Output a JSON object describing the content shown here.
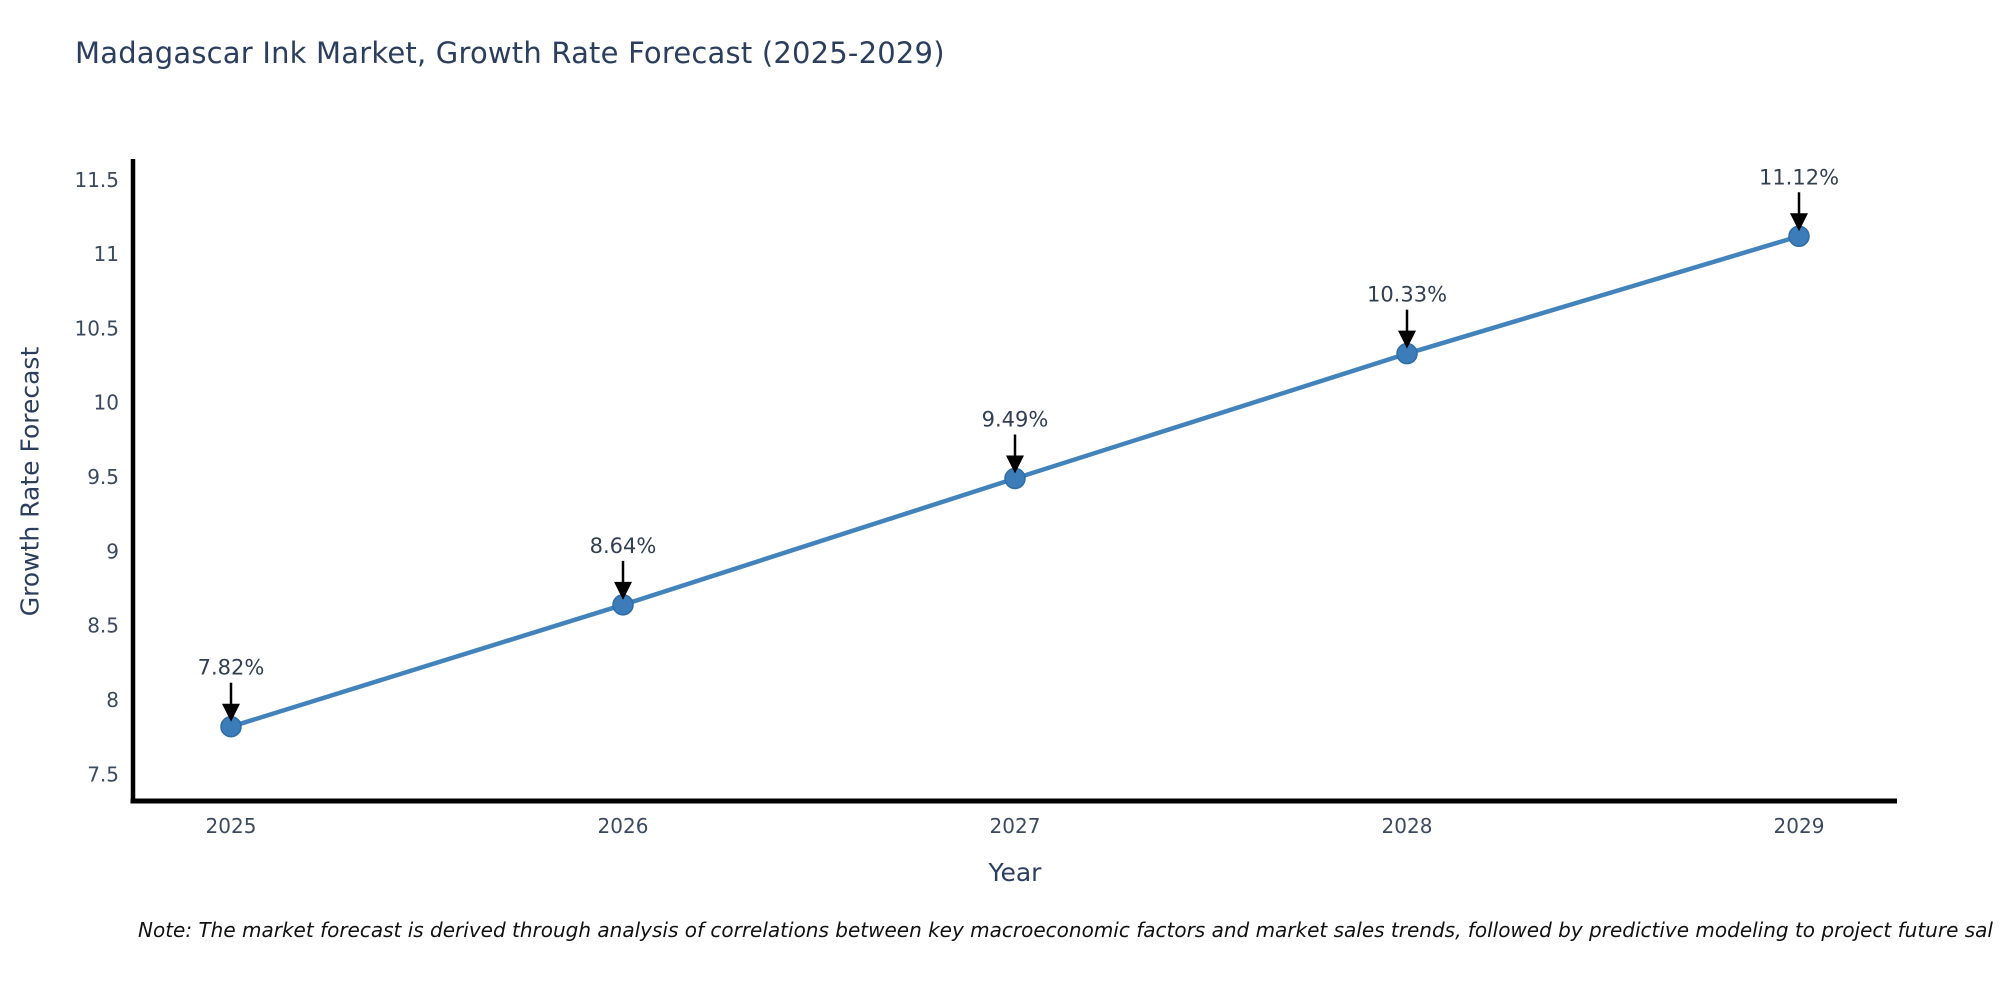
{
  "page": {
    "background_color": "#ffffff"
  },
  "chart_data": {
    "type": "line",
    "title": "Madagascar Ink Market, Growth Rate Forecast (2025-2029)",
    "xlabel": "Year",
    "ylabel": "Growth Rate Forecast",
    "x": [
      2025,
      2026,
      2027,
      2028,
      2029
    ],
    "series": [
      {
        "name": "Growth Rate Forecast",
        "values": [
          7.82,
          8.64,
          9.49,
          10.33,
          11.12
        ],
        "point_labels": [
          "7.82%",
          "8.64%",
          "9.49%",
          "10.33%",
          "11.12%"
        ]
      }
    ],
    "xtick_labels": [
      "2025",
      "2026",
      "2027",
      "2028",
      "2029"
    ],
    "yticks": [
      7.5,
      8,
      8.5,
      9,
      9.5,
      10,
      10.5,
      11,
      11.5
    ],
    "ytick_labels": [
      "7.5",
      "8",
      "8.5",
      "9",
      "9.5",
      "10",
      "10.5",
      "11",
      "11.5"
    ],
    "xlim": [
      2024.75,
      2029.25
    ],
    "ylim": [
      7.32,
      11.64
    ],
    "grid": false,
    "legend": "none",
    "annotation_style": "down-arrow-to-point"
  },
  "colors": {
    "line": "#4383bb",
    "marker_fill": "#3c7cb8",
    "marker_edge": "#2e6da6",
    "axis_spine": "#000000",
    "arrow": "#000000",
    "tick_text": "#3b4a5f",
    "title_text": "#2c3e5d",
    "note_text": "#111111"
  },
  "note": {
    "text": "Note: The market forecast is derived through analysis of correlations between key macroeconomic factors and market sales trends, followed by predictive modeling to project future sal"
  }
}
